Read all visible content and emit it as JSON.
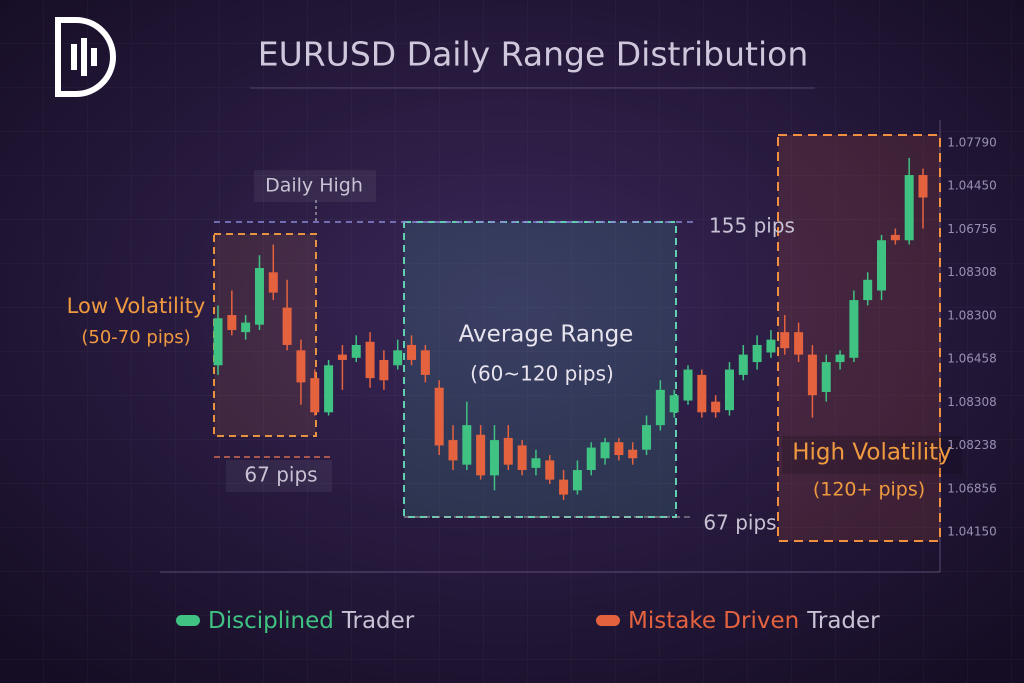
{
  "chart_data": {
    "type": "candlestick",
    "title": "EURUSD Daily Range Distribution",
    "ylim": [
      1.0415,
      1.0779
    ],
    "y_labels": [
      "1.07790",
      "1.04450",
      "1.06756",
      "1.08308",
      "1.08300",
      "1.06458",
      "1.08308",
      "1.08238",
      "1.06856",
      "1.04150"
    ],
    "up_color": "#3fc282",
    "down_color": "#e5623f",
    "candles": [
      [
        1.0571,
        1.0627,
        1.0562,
        1.0615
      ],
      [
        1.0618,
        1.0641,
        1.0599,
        1.0604
      ],
      [
        1.0602,
        1.0618,
        1.0595,
        1.0611
      ],
      [
        1.0609,
        1.0674,
        1.0604,
        1.0662
      ],
      [
        1.0658,
        1.0684,
        1.0632,
        1.0639
      ],
      [
        1.0625,
        1.0651,
        1.0585,
        1.059
      ],
      [
        1.0585,
        1.0595,
        1.0534,
        1.0555
      ],
      [
        1.0559,
        1.0567,
        1.0524,
        1.0527
      ],
      [
        1.0527,
        1.0576,
        1.0524,
        1.0571
      ],
      [
        1.0581,
        1.059,
        1.0548,
        1.0576
      ],
      [
        1.0578,
        1.0599,
        1.0574,
        1.059
      ],
      [
        1.0593,
        1.0602,
        1.055,
        1.0559
      ],
      [
        1.0576,
        1.0585,
        1.0548,
        1.0557
      ],
      [
        1.0571,
        1.0595,
        1.0567,
        1.0585
      ],
      [
        1.059,
        1.0599,
        1.0571,
        1.0576
      ],
      [
        1.0585,
        1.059,
        1.0555,
        1.0562
      ],
      [
        1.055,
        1.0557,
        1.0487,
        1.0496
      ],
      [
        1.0501,
        1.0515,
        1.0473,
        1.0482
      ],
      [
        1.0478,
        1.0537,
        1.0473,
        1.0515
      ],
      [
        1.0506,
        1.0515,
        1.0464,
        1.0468
      ],
      [
        1.0468,
        1.0515,
        1.0454,
        1.0501
      ],
      [
        1.0503,
        1.0515,
        1.0473,
        1.0478
      ],
      [
        1.0496,
        1.0501,
        1.0468,
        1.0473
      ],
      [
        1.0475,
        1.0492,
        1.0468,
        1.0484
      ],
      [
        1.0482,
        1.0487,
        1.046,
        1.0464
      ],
      [
        1.0464,
        1.0473,
        1.0445,
        1.045
      ],
      [
        1.0454,
        1.0482,
        1.045,
        1.0473
      ],
      [
        1.0473,
        1.0499,
        1.0468,
        1.0494
      ],
      [
        1.0484,
        1.0503,
        1.0478,
        1.0499
      ],
      [
        1.0499,
        1.0503,
        1.0482,
        1.0487
      ],
      [
        1.0492,
        1.0499,
        1.0478,
        1.0484
      ],
      [
        1.0492,
        1.0524,
        1.0487,
        1.0515
      ],
      [
        1.0515,
        1.0557,
        1.051,
        1.0548
      ],
      [
        1.0527,
        1.0548,
        1.0522,
        1.0543
      ],
      [
        1.0538,
        1.0571,
        1.0534,
        1.0567
      ],
      [
        1.0562,
        1.0567,
        1.0522,
        1.0527
      ],
      [
        1.0537,
        1.0543,
        1.0522,
        1.0527
      ],
      [
        1.0529,
        1.0574,
        1.0524,
        1.0567
      ],
      [
        1.0562,
        1.059,
        1.0557,
        1.0581
      ],
      [
        1.0574,
        1.0599,
        1.0567,
        1.059
      ],
      [
        1.0583,
        1.0604,
        1.0578,
        1.0595
      ],
      [
        1.0602,
        1.0618,
        1.0581,
        1.0587
      ],
      [
        1.0602,
        1.0611,
        1.0574,
        1.0581
      ],
      [
        1.0581,
        1.059,
        1.0522,
        1.0543
      ],
      [
        1.0546,
        1.0581,
        1.0537,
        1.0574
      ],
      [
        1.0574,
        1.0585,
        1.0567,
        1.0581
      ],
      [
        1.0578,
        1.0641,
        1.0574,
        1.0632
      ],
      [
        1.0632,
        1.0658,
        1.0627,
        1.0651
      ],
      [
        1.0641,
        1.0693,
        1.0632,
        1.0688
      ],
      [
        1.0693,
        1.0699,
        1.0684,
        1.0688
      ],
      [
        1.0688,
        1.0765,
        1.0684,
        1.0749
      ],
      [
        1.0749,
        1.0755,
        1.0699,
        1.0728
      ]
    ],
    "annotations": {
      "daily_high": "Daily High",
      "range_top": "155 pips",
      "low_title": "Low Volatility",
      "low_sub": "(50-70 pips)",
      "low_width": "67 pips",
      "avg_title": "Average Range",
      "avg_sub": "(60~120 pips)",
      "avg_width": "67 pips",
      "high_title": "High Volatility",
      "high_sub": "(120+ pips)"
    },
    "legend": [
      {
        "highlight": "Disciplined",
        "rest": "Trader",
        "color": "#3fc282"
      },
      {
        "highlight": "Mistake Driven",
        "rest": "Trader",
        "color": "#e5623f"
      }
    ]
  }
}
